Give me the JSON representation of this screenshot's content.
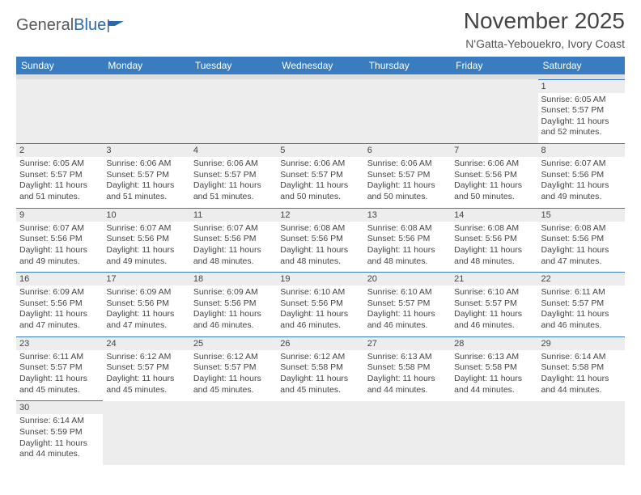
{
  "logo": {
    "text1": "General",
    "text2": "Blue"
  },
  "title": "November 2025",
  "location": "N'Gatta-Yebouekro, Ivory Coast",
  "colors": {
    "header_bg": "#3a7cc0",
    "header_fg": "#ffffff",
    "band_bg": "#dedede",
    "daynum_bg": "#ededed",
    "text": "#444444",
    "cell_border": "#3a7cc0",
    "logo_gray": "#5a5a5a",
    "logo_blue": "#2b6aa8"
  },
  "day_headers": [
    "Sunday",
    "Monday",
    "Tuesday",
    "Wednesday",
    "Thursday",
    "Friday",
    "Saturday"
  ],
  "weeks": [
    [
      null,
      null,
      null,
      null,
      null,
      null,
      {
        "n": "1",
        "sunrise": "Sunrise: 6:05 AM",
        "sunset": "Sunset: 5:57 PM",
        "daylight": "Daylight: 11 hours and 52 minutes."
      }
    ],
    [
      {
        "n": "2",
        "sunrise": "Sunrise: 6:05 AM",
        "sunset": "Sunset: 5:57 PM",
        "daylight": "Daylight: 11 hours and 51 minutes."
      },
      {
        "n": "3",
        "sunrise": "Sunrise: 6:06 AM",
        "sunset": "Sunset: 5:57 PM",
        "daylight": "Daylight: 11 hours and 51 minutes."
      },
      {
        "n": "4",
        "sunrise": "Sunrise: 6:06 AM",
        "sunset": "Sunset: 5:57 PM",
        "daylight": "Daylight: 11 hours and 51 minutes."
      },
      {
        "n": "5",
        "sunrise": "Sunrise: 6:06 AM",
        "sunset": "Sunset: 5:57 PM",
        "daylight": "Daylight: 11 hours and 50 minutes."
      },
      {
        "n": "6",
        "sunrise": "Sunrise: 6:06 AM",
        "sunset": "Sunset: 5:57 PM",
        "daylight": "Daylight: 11 hours and 50 minutes."
      },
      {
        "n": "7",
        "sunrise": "Sunrise: 6:06 AM",
        "sunset": "Sunset: 5:56 PM",
        "daylight": "Daylight: 11 hours and 50 minutes."
      },
      {
        "n": "8",
        "sunrise": "Sunrise: 6:07 AM",
        "sunset": "Sunset: 5:56 PM",
        "daylight": "Daylight: 11 hours and 49 minutes."
      }
    ],
    [
      {
        "n": "9",
        "sunrise": "Sunrise: 6:07 AM",
        "sunset": "Sunset: 5:56 PM",
        "daylight": "Daylight: 11 hours and 49 minutes."
      },
      {
        "n": "10",
        "sunrise": "Sunrise: 6:07 AM",
        "sunset": "Sunset: 5:56 PM",
        "daylight": "Daylight: 11 hours and 49 minutes."
      },
      {
        "n": "11",
        "sunrise": "Sunrise: 6:07 AM",
        "sunset": "Sunset: 5:56 PM",
        "daylight": "Daylight: 11 hours and 48 minutes."
      },
      {
        "n": "12",
        "sunrise": "Sunrise: 6:08 AM",
        "sunset": "Sunset: 5:56 PM",
        "daylight": "Daylight: 11 hours and 48 minutes."
      },
      {
        "n": "13",
        "sunrise": "Sunrise: 6:08 AM",
        "sunset": "Sunset: 5:56 PM",
        "daylight": "Daylight: 11 hours and 48 minutes."
      },
      {
        "n": "14",
        "sunrise": "Sunrise: 6:08 AM",
        "sunset": "Sunset: 5:56 PM",
        "daylight": "Daylight: 11 hours and 48 minutes."
      },
      {
        "n": "15",
        "sunrise": "Sunrise: 6:08 AM",
        "sunset": "Sunset: 5:56 PM",
        "daylight": "Daylight: 11 hours and 47 minutes."
      }
    ],
    [
      {
        "n": "16",
        "sunrise": "Sunrise: 6:09 AM",
        "sunset": "Sunset: 5:56 PM",
        "daylight": "Daylight: 11 hours and 47 minutes."
      },
      {
        "n": "17",
        "sunrise": "Sunrise: 6:09 AM",
        "sunset": "Sunset: 5:56 PM",
        "daylight": "Daylight: 11 hours and 47 minutes."
      },
      {
        "n": "18",
        "sunrise": "Sunrise: 6:09 AM",
        "sunset": "Sunset: 5:56 PM",
        "daylight": "Daylight: 11 hours and 46 minutes."
      },
      {
        "n": "19",
        "sunrise": "Sunrise: 6:10 AM",
        "sunset": "Sunset: 5:56 PM",
        "daylight": "Daylight: 11 hours and 46 minutes."
      },
      {
        "n": "20",
        "sunrise": "Sunrise: 6:10 AM",
        "sunset": "Sunset: 5:57 PM",
        "daylight": "Daylight: 11 hours and 46 minutes."
      },
      {
        "n": "21",
        "sunrise": "Sunrise: 6:10 AM",
        "sunset": "Sunset: 5:57 PM",
        "daylight": "Daylight: 11 hours and 46 minutes."
      },
      {
        "n": "22",
        "sunrise": "Sunrise: 6:11 AM",
        "sunset": "Sunset: 5:57 PM",
        "daylight": "Daylight: 11 hours and 46 minutes."
      }
    ],
    [
      {
        "n": "23",
        "sunrise": "Sunrise: 6:11 AM",
        "sunset": "Sunset: 5:57 PM",
        "daylight": "Daylight: 11 hours and 45 minutes."
      },
      {
        "n": "24",
        "sunrise": "Sunrise: 6:12 AM",
        "sunset": "Sunset: 5:57 PM",
        "daylight": "Daylight: 11 hours and 45 minutes."
      },
      {
        "n": "25",
        "sunrise": "Sunrise: 6:12 AM",
        "sunset": "Sunset: 5:57 PM",
        "daylight": "Daylight: 11 hours and 45 minutes."
      },
      {
        "n": "26",
        "sunrise": "Sunrise: 6:12 AM",
        "sunset": "Sunset: 5:58 PM",
        "daylight": "Daylight: 11 hours and 45 minutes."
      },
      {
        "n": "27",
        "sunrise": "Sunrise: 6:13 AM",
        "sunset": "Sunset: 5:58 PM",
        "daylight": "Daylight: 11 hours and 44 minutes."
      },
      {
        "n": "28",
        "sunrise": "Sunrise: 6:13 AM",
        "sunset": "Sunset: 5:58 PM",
        "daylight": "Daylight: 11 hours and 44 minutes."
      },
      {
        "n": "29",
        "sunrise": "Sunrise: 6:14 AM",
        "sunset": "Sunset: 5:58 PM",
        "daylight": "Daylight: 11 hours and 44 minutes."
      }
    ],
    [
      {
        "n": "30",
        "sunrise": "Sunrise: 6:14 AM",
        "sunset": "Sunset: 5:59 PM",
        "daylight": "Daylight: 11 hours and 44 minutes."
      },
      null,
      null,
      null,
      null,
      null,
      null
    ]
  ]
}
